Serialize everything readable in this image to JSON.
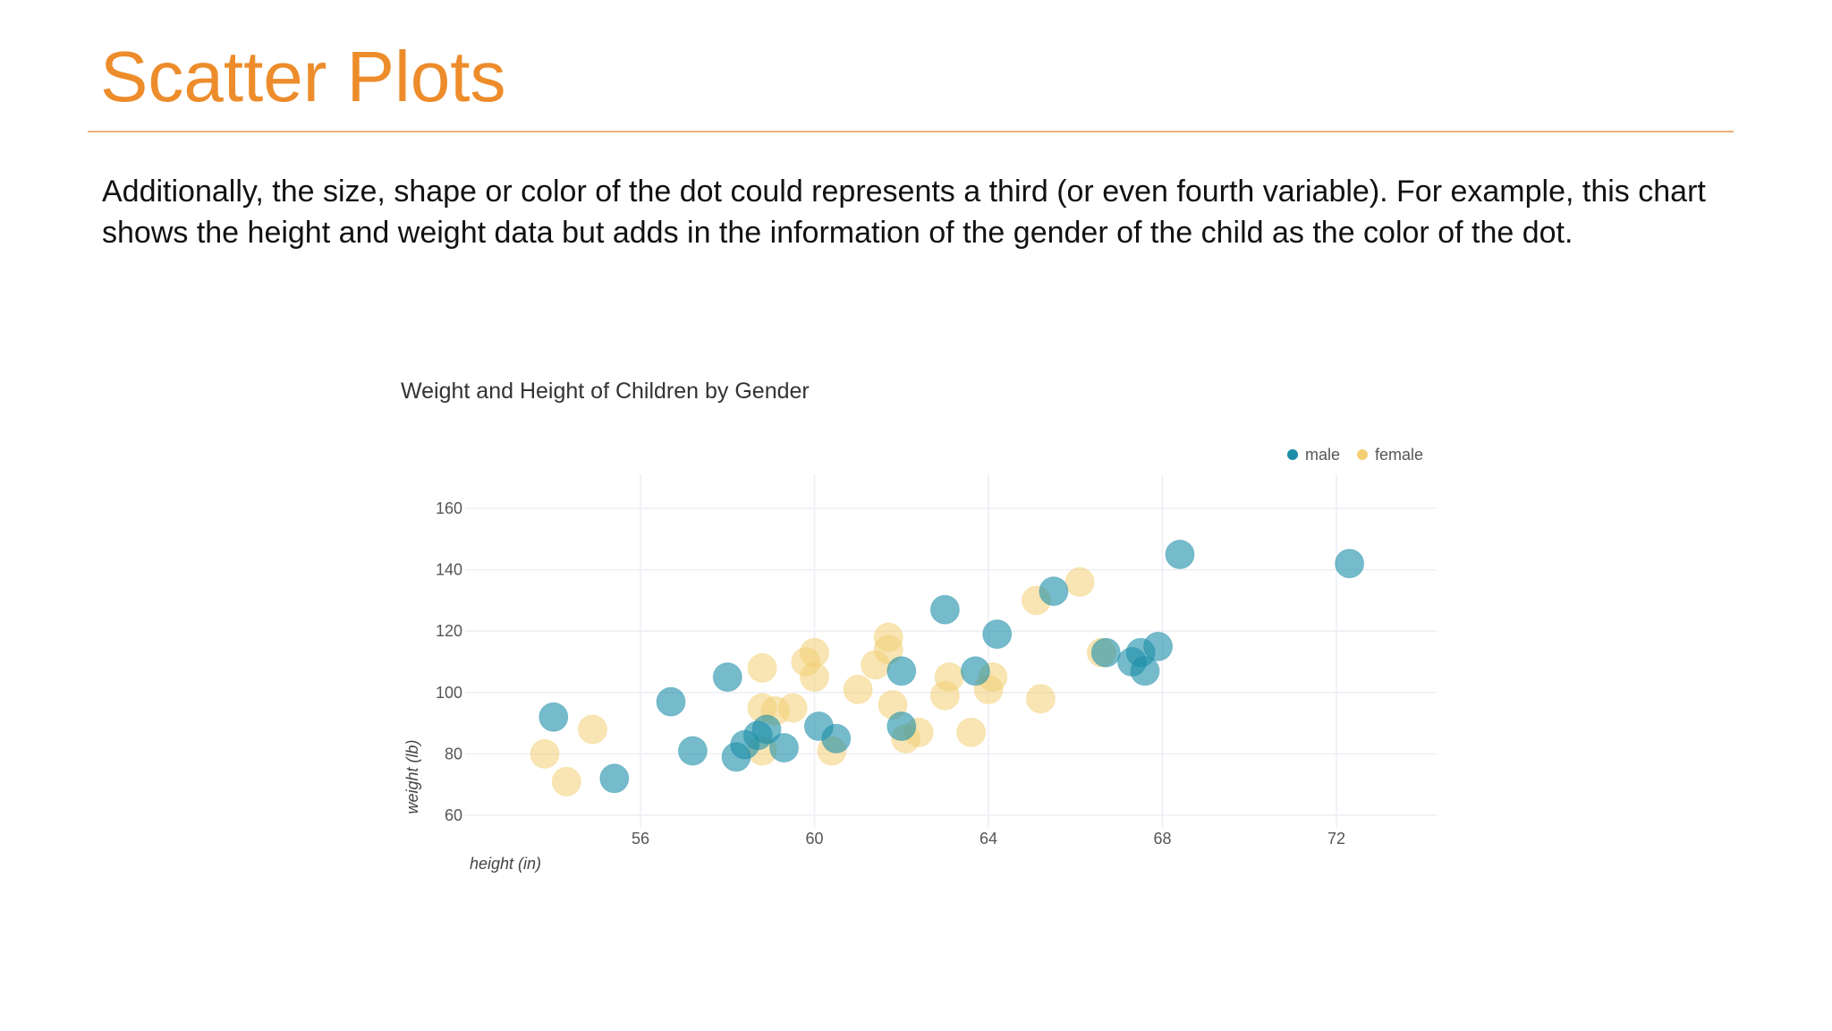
{
  "slide": {
    "title": "Scatter Plots",
    "paragraph": "Additionally, the size, shape or color of the dot could represents a third (or even fourth variable). For example, this chart shows the height and weight data but adds in the information of the gender of the child as the color of the dot."
  },
  "colors": {
    "title": "#ED8C2B",
    "male": "#1B8DA8",
    "female": "#F3CF74"
  },
  "chart_data": {
    "type": "scatter",
    "title": "Weight and Height of Children by Gender",
    "xlabel": "height (in)",
    "ylabel": "weight (lb)",
    "xlim": [
      52,
      74
    ],
    "ylim": [
      60,
      165
    ],
    "xticks": [
      56,
      60,
      64,
      68,
      72
    ],
    "yticks": [
      60,
      80,
      100,
      120,
      140,
      160
    ],
    "grid": true,
    "legend_position": "top-right",
    "series": [
      {
        "name": "male",
        "color": "#1B8DA8",
        "points": [
          [
            54.0,
            92
          ],
          [
            55.4,
            72
          ],
          [
            56.7,
            97
          ],
          [
            57.2,
            81
          ],
          [
            58.0,
            105
          ],
          [
            58.2,
            79
          ],
          [
            58.4,
            83
          ],
          [
            58.7,
            86
          ],
          [
            58.9,
            88
          ],
          [
            59.3,
            82
          ],
          [
            60.1,
            89
          ],
          [
            60.5,
            85
          ],
          [
            62.0,
            89
          ],
          [
            62.0,
            107
          ],
          [
            63.0,
            127
          ],
          [
            63.7,
            107
          ],
          [
            64.2,
            119
          ],
          [
            65.5,
            133
          ],
          [
            66.7,
            113
          ],
          [
            67.3,
            110
          ],
          [
            67.5,
            113
          ],
          [
            67.6,
            107
          ],
          [
            67.9,
            115
          ],
          [
            68.4,
            145
          ],
          [
            72.3,
            142
          ]
        ]
      },
      {
        "name": "female",
        "color": "#F3CF74",
        "points": [
          [
            53.8,
            80
          ],
          [
            54.3,
            71
          ],
          [
            54.9,
            88
          ],
          [
            58.8,
            108
          ],
          [
            58.8,
            95
          ],
          [
            58.8,
            81
          ],
          [
            59.1,
            94
          ],
          [
            59.5,
            95
          ],
          [
            59.8,
            110
          ],
          [
            60.0,
            113
          ],
          [
            60.0,
            105
          ],
          [
            60.4,
            81
          ],
          [
            61.0,
            101
          ],
          [
            61.4,
            109
          ],
          [
            61.7,
            118
          ],
          [
            61.7,
            114
          ],
          [
            61.8,
            96
          ],
          [
            62.1,
            85
          ],
          [
            62.4,
            87
          ],
          [
            63.0,
            99
          ],
          [
            63.1,
            105
          ],
          [
            63.6,
            87
          ],
          [
            64.0,
            101
          ],
          [
            64.1,
            105
          ],
          [
            65.1,
            130
          ],
          [
            65.2,
            98
          ],
          [
            66.1,
            136
          ],
          [
            66.6,
            113
          ]
        ]
      }
    ]
  }
}
